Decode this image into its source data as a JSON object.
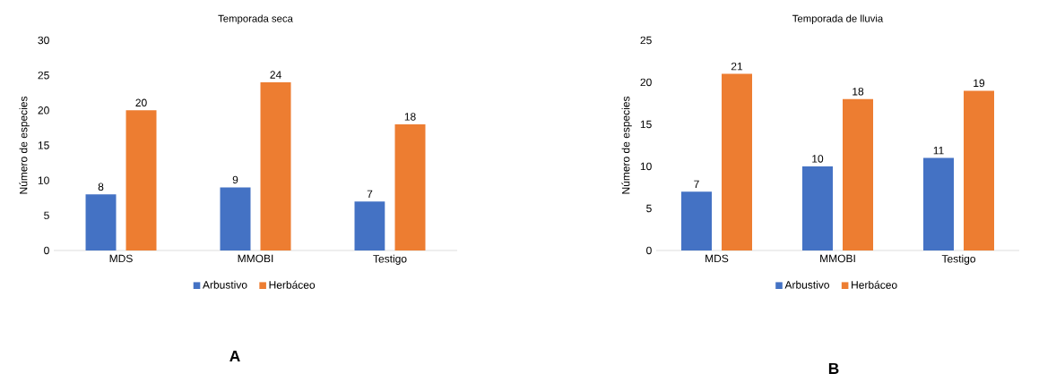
{
  "chart_data": [
    {
      "type": "bar",
      "title": "Temporada seca",
      "ylabel": "Número de especies",
      "categories": [
        "MDS",
        "MMOBI",
        "Testigo"
      ],
      "series": [
        {
          "name": "Arbustivo",
          "color": "#4472c4",
          "values": [
            8,
            9,
            7
          ]
        },
        {
          "name": "Herbáceo",
          "color": "#ed7d31",
          "values": [
            20,
            24,
            18
          ]
        }
      ],
      "ylim": [
        0,
        30
      ],
      "yticks": [
        0,
        5,
        10,
        15,
        20,
        25,
        30
      ],
      "data_labels": true,
      "legend": "bottom",
      "grid": false,
      "annotations": [
        "A"
      ]
    },
    {
      "type": "bar",
      "title": "Temporada de lluvia",
      "ylabel": "Número de especies",
      "categories": [
        "MDS",
        "MMOBI",
        "Testigo"
      ],
      "series": [
        {
          "name": "Arbustivo",
          "color": "#4472c4",
          "values": [
            7,
            10,
            11
          ]
        },
        {
          "name": "Herbáceo",
          "color": "#ed7d31",
          "values": [
            21,
            18,
            19
          ]
        }
      ],
      "ylim": [
        0,
        25
      ],
      "yticks": [
        0,
        5,
        10,
        15,
        20,
        25
      ],
      "data_labels": true,
      "legend": "bottom",
      "grid": false,
      "annotations": [
        "B"
      ]
    }
  ]
}
